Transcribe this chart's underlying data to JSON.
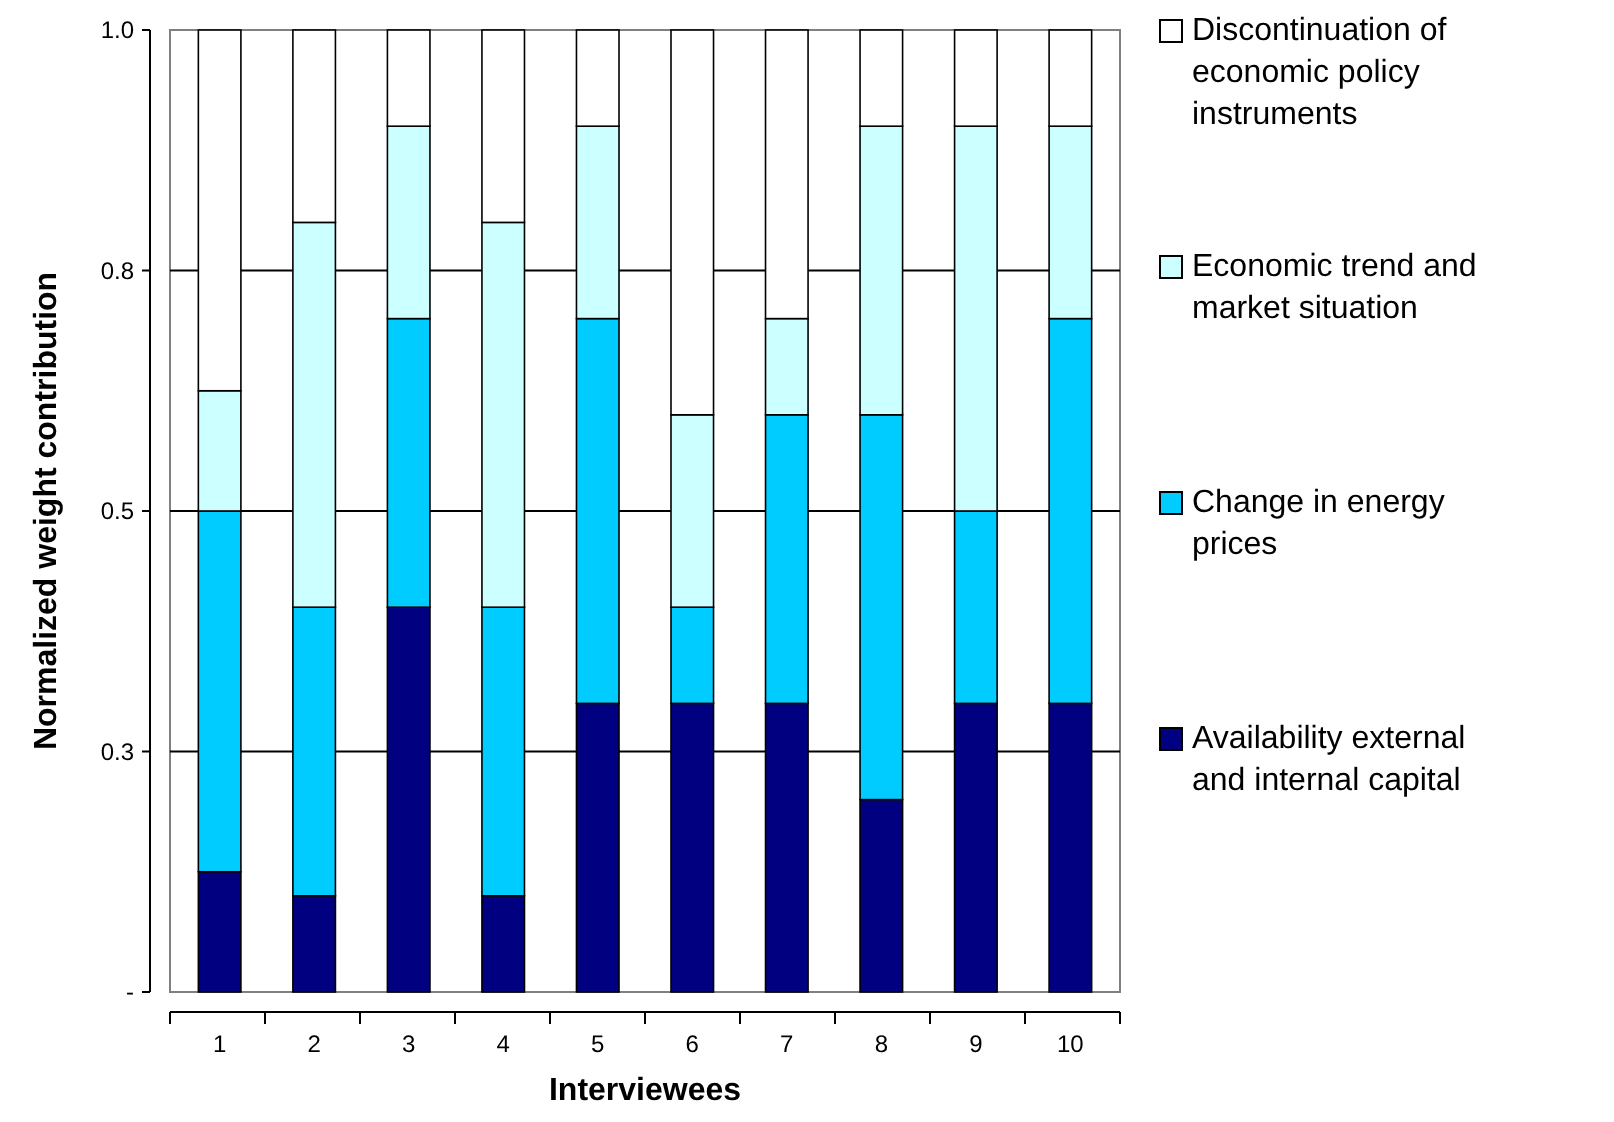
{
  "chart_data": {
    "type": "bar",
    "stacked": true,
    "xlabel": "Interviewees",
    "ylabel": "Normalized weight contribution",
    "categories": [
      "1",
      "2",
      "3",
      "4",
      "5",
      "6",
      "7",
      "8",
      "9",
      "10"
    ],
    "series": [
      {
        "name": "Availability external and internal capital",
        "color": "#000080",
        "values": [
          0.125,
          0.1,
          0.4,
          0.1,
          0.3,
          0.3,
          0.3,
          0.2,
          0.3,
          0.3
        ]
      },
      {
        "name": "Change in energy prices",
        "color": "#00ccff",
        "values": [
          0.375,
          0.3,
          0.3,
          0.3,
          0.4,
          0.1,
          0.3,
          0.4,
          0.2,
          0.4
        ]
      },
      {
        "name": "Economic trend and market situation",
        "color": "#ccffff",
        "values": [
          0.125,
          0.4,
          0.2,
          0.4,
          0.2,
          0.2,
          0.1,
          0.3,
          0.4,
          0.2
        ]
      },
      {
        "name": "Discontinuation of economic policy instruments",
        "color": "#ffffff",
        "values": [
          0.375,
          0.2,
          0.1,
          0.2,
          0.1,
          0.4,
          0.3,
          0.1,
          0.1,
          0.1
        ]
      }
    ],
    "ylim": [
      0,
      1
    ],
    "yticks": [
      {
        "value": 0,
        "label": "-"
      },
      {
        "value": 0.25,
        "label": "0.3"
      },
      {
        "value": 0.5,
        "label": "0.5"
      },
      {
        "value": 0.75,
        "label": "0.8"
      },
      {
        "value": 1,
        "label": "1.0"
      }
    ],
    "grid": "y",
    "legend": "right"
  }
}
